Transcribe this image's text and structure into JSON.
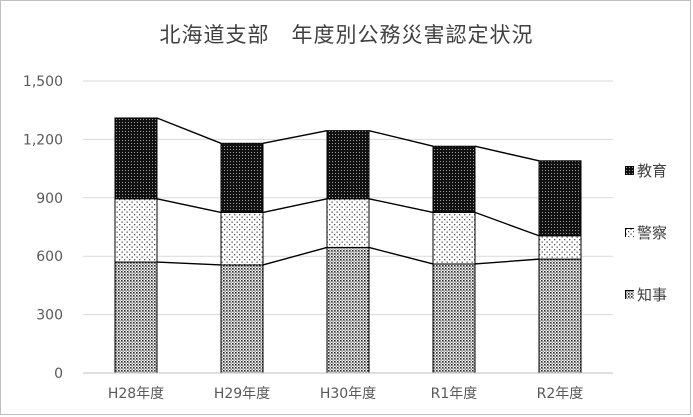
{
  "chart_data": {
    "type": "bar",
    "stacked": true,
    "title": "北海道支部　年度別公務災害認定状況",
    "xlabel": "",
    "ylabel": "",
    "categories": [
      "H28年度",
      "H29年度",
      "H30年度",
      "R1年度",
      "R2年度"
    ],
    "ylim": [
      0,
      1500
    ],
    "yticks": [
      0,
      300,
      600,
      900,
      1200,
      1500
    ],
    "ytick_labels": [
      "0",
      "300",
      "600",
      "900",
      "1,200",
      "1,500"
    ],
    "grid": true,
    "series_lines": true,
    "legend_position": "right",
    "series": [
      {
        "name": "知事",
        "values": [
          570,
          555,
          645,
          560,
          585
        ],
        "pattern": "dense-dots"
      },
      {
        "name": "警察",
        "values": [
          325,
          270,
          250,
          265,
          120
        ],
        "pattern": "sparse-dots"
      },
      {
        "name": "教育",
        "values": [
          415,
          355,
          350,
          340,
          385
        ],
        "pattern": "dark-dots"
      }
    ],
    "legend_order": [
      "教育",
      "警察",
      "知事"
    ]
  }
}
